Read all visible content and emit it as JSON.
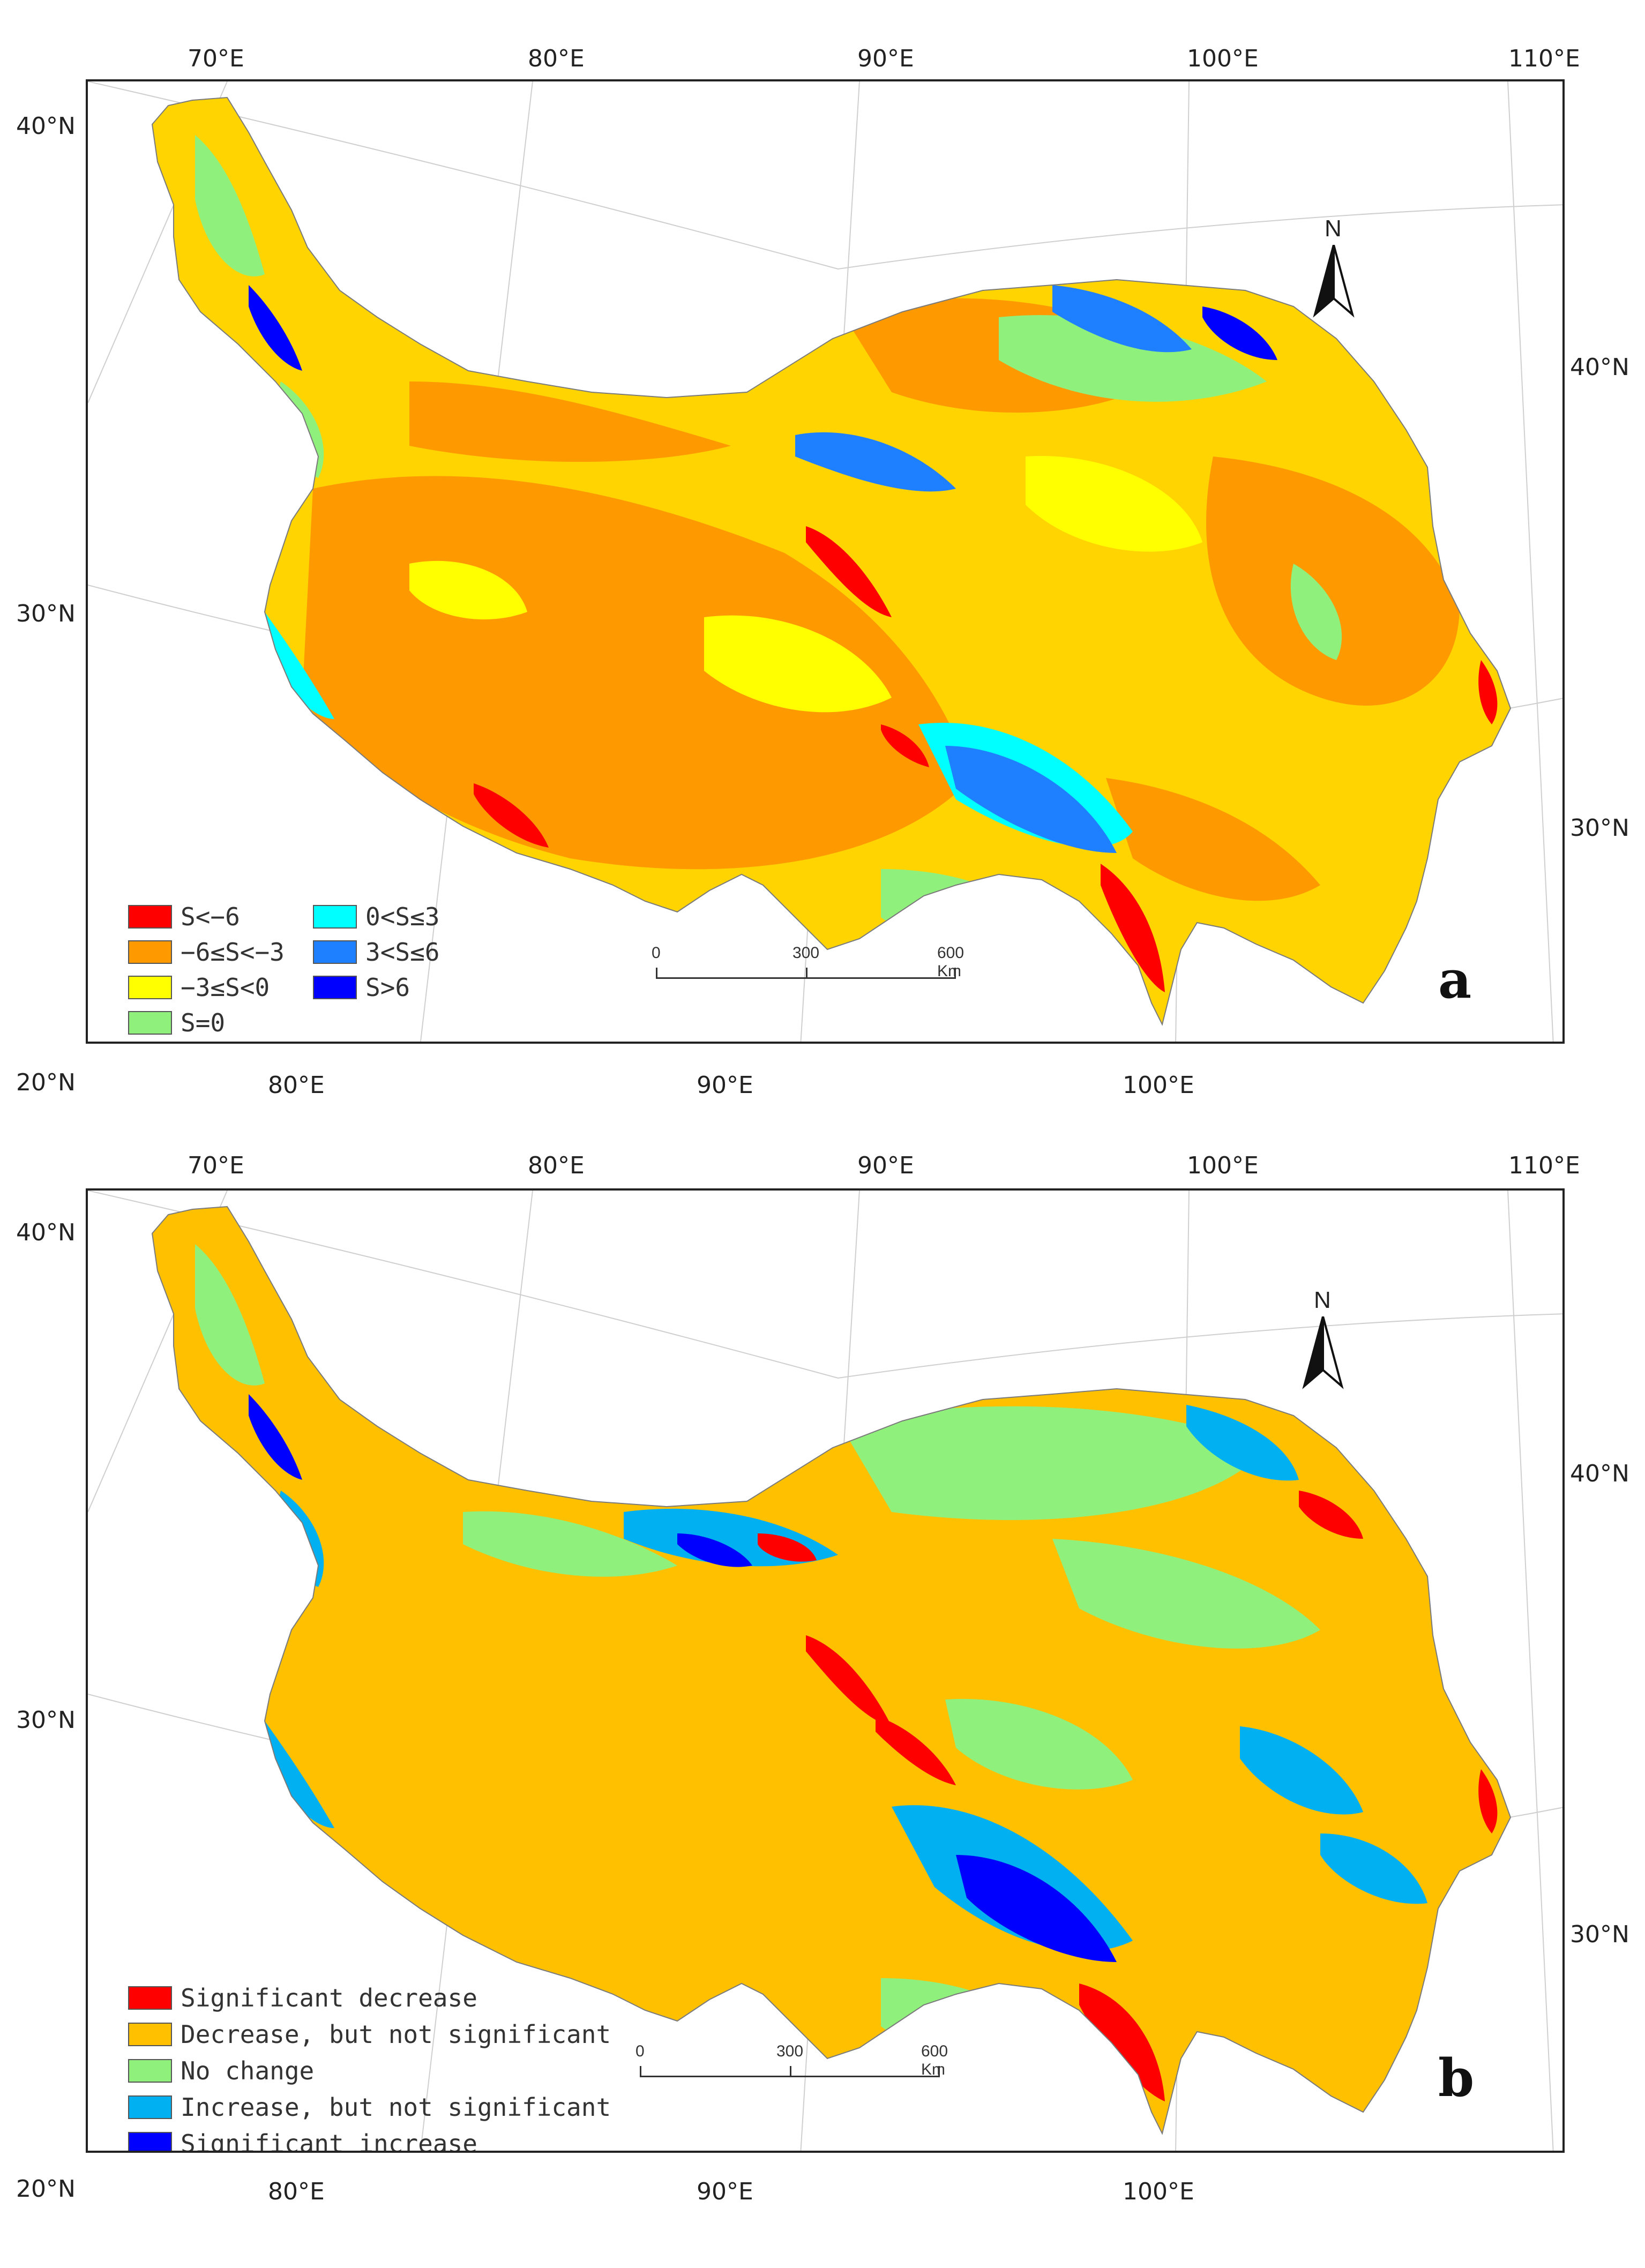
{
  "panel_a": {
    "letter": "a",
    "top_lon_labels": [
      "70°E",
      "80°E",
      "90°E",
      "100°E",
      "110°E"
    ],
    "bottom_lon_labels": [
      "80°E",
      "90°E",
      "100°E"
    ],
    "left_lat_labels": [
      "40°N",
      "30°N",
      "20°N"
    ],
    "right_lat_labels": [
      "40°N",
      "30°N"
    ],
    "legend": [
      {
        "label": "S<−6",
        "color": "#ff0000"
      },
      {
        "label": "0<S≤3",
        "color": "#00ffff"
      },
      {
        "label": "−6≤S<−3",
        "color": "#ff9900"
      },
      {
        "label": "3<S≤6",
        "color": "#1e7fff"
      },
      {
        "label": "−3≤S<0",
        "color": "#ffff00"
      },
      {
        "label": "S>6",
        "color": "#0000ff"
      },
      {
        "label": "S=0",
        "color": "#90f07c"
      }
    ],
    "scale": {
      "t0": "0",
      "t1": "300",
      "t2": "600 Km"
    },
    "north": "N"
  },
  "panel_b": {
    "letter": "b",
    "top_lon_labels": [
      "70°E",
      "80°E",
      "90°E",
      "100°E",
      "110°E"
    ],
    "bottom_lon_labels": [
      "80°E",
      "90°E",
      "100°E"
    ],
    "left_lat_labels": [
      "40°N",
      "30°N",
      "20°N"
    ],
    "right_lat_labels": [
      "40°N",
      "30°N"
    ],
    "legend": [
      {
        "label": "Significant decrease",
        "color": "#ff0000"
      },
      {
        "label": "Decrease, but not significant",
        "color": "#ffc000"
      },
      {
        "label": "No change",
        "color": "#90f07c"
      },
      {
        "label": "Increase, but not significant",
        "color": "#00b0f0"
      },
      {
        "label": "Significant increase",
        "color": "#0000ff"
      }
    ],
    "scale": {
      "t0": "0",
      "t1": "300",
      "t2": "600 Km"
    },
    "north": "N"
  }
}
